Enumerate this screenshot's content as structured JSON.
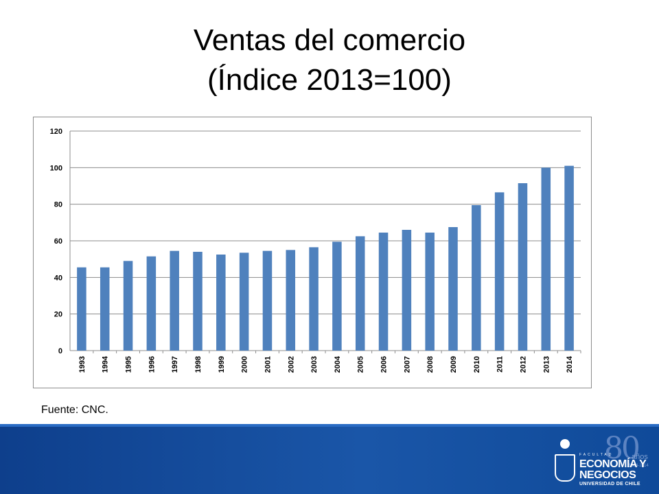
{
  "slide": {
    "title_line1": "Ventas del comercio",
    "title_line2": "(Índice 2013=100)",
    "source": "Fuente: CNC."
  },
  "footer": {
    "logo_anniversary": "80",
    "logo_anos": "años",
    "logo_years": "1934-2014",
    "logo_facultad": "FACULTAD",
    "logo_line1": "ECONOMÍA Y",
    "logo_line2": "NEGOCIOS",
    "logo_line3": "UNIVERSIDAD DE CHILE",
    "band_color": "#1a56a8"
  },
  "chart_data": {
    "type": "bar",
    "categories": [
      "1993",
      "1994",
      "1995",
      "1996",
      "1997",
      "1998",
      "1999",
      "2000",
      "2001",
      "2002",
      "2003",
      "2004",
      "2005",
      "2006",
      "2007",
      "2008",
      "2009",
      "2010",
      "2011",
      "2012",
      "2013",
      "2014"
    ],
    "series": [
      {
        "values": [
          45.5,
          45.5,
          49,
          51.5,
          54.5,
          54,
          52.5,
          53.5,
          54.5,
          55,
          56.5,
          59.5,
          62.5,
          64.5,
          66,
          64.5,
          67.5,
          79.5,
          86.5,
          91.5,
          100,
          101
        ],
        "color": "#4f81bd"
      }
    ],
    "title": "",
    "xlabel": "",
    "ylabel": "",
    "ylim": [
      0,
      120
    ],
    "yticks": [
      0,
      20,
      40,
      60,
      80,
      100,
      120
    ],
    "grid": true,
    "legend": "none"
  }
}
